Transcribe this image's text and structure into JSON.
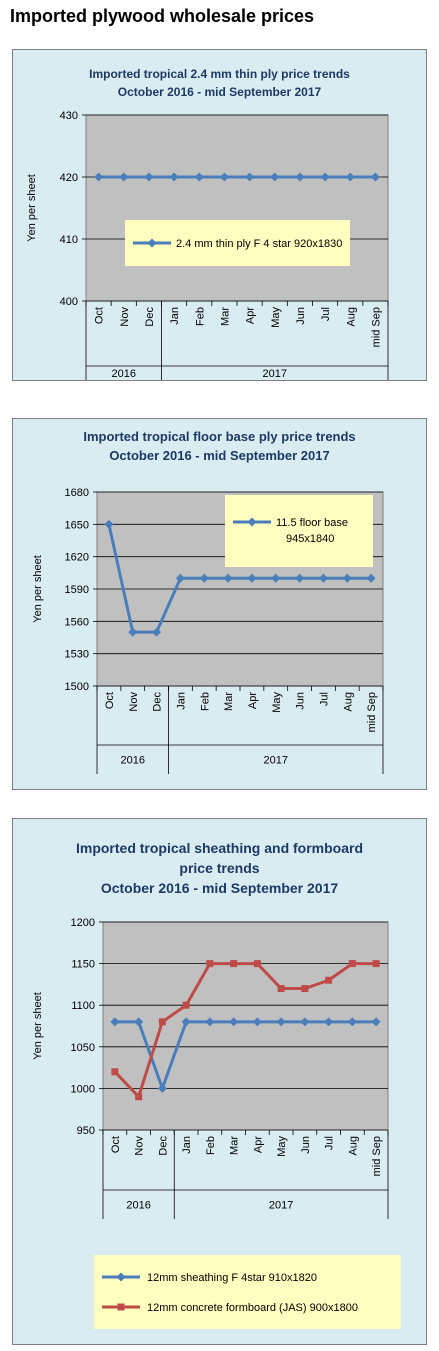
{
  "page": {
    "title": "Imported plywood wholesale prices"
  },
  "colors": {
    "panel_bg": "#d9ecf2",
    "plot_bg": "#c0c0c0",
    "legend_bg": "#ffffc0",
    "title_color": "#1f3864",
    "blue": "#4a7ebb",
    "red": "#be4b48"
  },
  "chart_data": [
    {
      "type": "line",
      "title": [
        "Imported tropical 2.4 mm thin ply price trends",
        "October 2016 - mid September 2017"
      ],
      "ylabel": "Yen per sheet",
      "ylim": [
        400,
        430
      ],
      "yticks": [
        400,
        410,
        420,
        430
      ],
      "categories": [
        "Oct",
        "Nov",
        "Dec",
        "Jan",
        "Feb",
        "Mar",
        "Apr",
        "May",
        "Jun",
        "Jul",
        "Aug",
        "mid Sep"
      ],
      "year_groups": [
        {
          "label": "2016",
          "count": 3
        },
        {
          "label": "2017",
          "count": 9
        }
      ],
      "legend": "inside-center",
      "grid": true,
      "series": [
        {
          "name": "2.4 mm thin ply F 4 star 920x1830",
          "color": "#4a7ebb",
          "marker": "diamond",
          "values": [
            420,
            420,
            420,
            420,
            420,
            420,
            420,
            420,
            420,
            420,
            420,
            420
          ]
        }
      ]
    },
    {
      "type": "line",
      "title": [
        "Imported tropical floor base ply price trends",
        "October 2016 - mid September 2017"
      ],
      "ylabel": "Yen per sheet",
      "ylim": [
        1500,
        1680
      ],
      "yticks": [
        1500,
        1530,
        1560,
        1590,
        1620,
        1650,
        1680
      ],
      "categories": [
        "Oct",
        "Nov",
        "Dec",
        "Jan",
        "Feb",
        "Mar",
        "Apr",
        "May",
        "Jun",
        "Jul",
        "Aug",
        "mid Sep"
      ],
      "year_groups": [
        {
          "label": "2016",
          "count": 3
        },
        {
          "label": "2017",
          "count": 9
        }
      ],
      "legend": "inside-top-right",
      "grid": true,
      "series": [
        {
          "name": "11.5 floor base 945x1840",
          "color": "#4a7ebb",
          "marker": "diamond",
          "values": [
            1650,
            1550,
            1550,
            1600,
            1600,
            1600,
            1600,
            1600,
            1600,
            1600,
            1600,
            1600
          ]
        }
      ]
    },
    {
      "type": "line",
      "title": [
        "Imported tropical sheathing and formboard",
        "price trends",
        "October 2016 - mid September 2017"
      ],
      "ylabel": "Yen per sheet",
      "ylim": [
        950,
        1200
      ],
      "yticks": [
        950,
        1000,
        1050,
        1100,
        1150,
        1200
      ],
      "categories": [
        "Oct",
        "Nov",
        "Dec",
        "Jan",
        "Feb",
        "Mar",
        "Apr",
        "May",
        "Jun",
        "Jul",
        "Aug",
        "mid Sep"
      ],
      "year_groups": [
        {
          "label": "2016",
          "count": 3
        },
        {
          "label": "2017",
          "count": 9
        }
      ],
      "legend": "bottom",
      "grid": true,
      "series": [
        {
          "name": "12mm sheathing F 4star 910x1820",
          "color": "#4a7ebb",
          "marker": "diamond",
          "values": [
            1080,
            1080,
            1000,
            1080,
            1080,
            1080,
            1080,
            1080,
            1080,
            1080,
            1080,
            1080
          ]
        },
        {
          "name": "12mm concrete formboard (JAS) 900x1800",
          "color": "#be4b48",
          "marker": "square",
          "values": [
            1020,
            990,
            1080,
            1100,
            1150,
            1150,
            1150,
            1120,
            1120,
            1130,
            1150,
            1150
          ]
        }
      ]
    }
  ]
}
